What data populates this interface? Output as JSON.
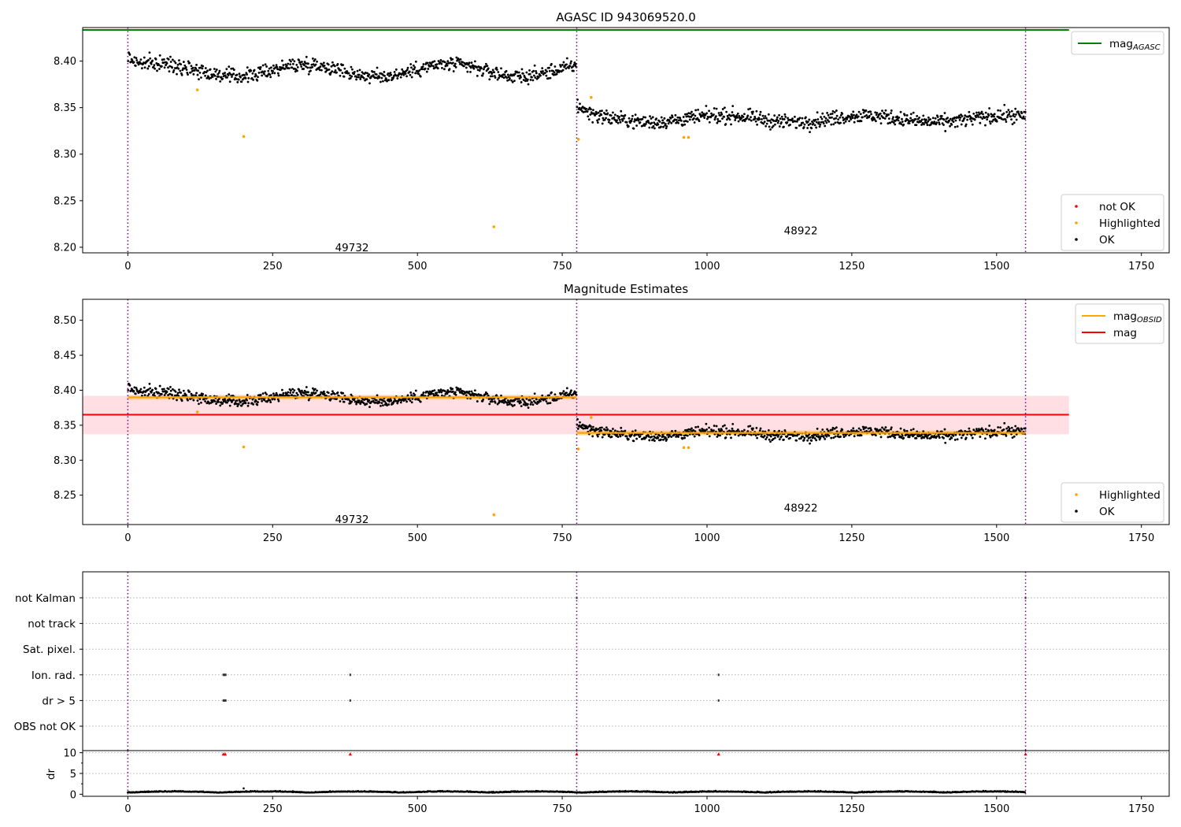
{
  "figure": {
    "title": "AGASC ID 943069520.0"
  },
  "chart_data": [
    {
      "type": "scatter",
      "title": "AGASC ID 943069520.0",
      "xlim": [
        -78,
        1798
      ],
      "ylim": [
        8.194,
        8.436
      ],
      "xticks": [
        0,
        250,
        500,
        750,
        1000,
        1250,
        1500,
        1750
      ],
      "yticks": [
        8.2,
        8.25,
        8.3,
        8.35,
        8.4
      ],
      "ytick_labels": [
        "8.20",
        "8.25",
        "8.30",
        "8.35",
        "8.40"
      ],
      "obs_boundaries": [
        0,
        775,
        1550
      ],
      "obs_labels": [
        {
          "text": "49732",
          "x": 387,
          "y": 8.2
        },
        {
          "text": "48922",
          "x": 1162,
          "y": 8.218
        }
      ],
      "series": [
        {
          "name": "mag_AGASC",
          "type": "hline",
          "y": 8.4335,
          "x": [
            -78,
            1625
          ],
          "color": "#008000"
        },
        {
          "name": "OK",
          "color": "#000000",
          "segments": [
            {
              "x": [
                0,
                775
              ],
              "y_start": 8.405,
              "base": 8.39,
              "amp": 0.0065,
              "jitter": 0.0055
            },
            {
              "x": [
                775,
                1550
              ],
              "y_start": 8.35,
              "base": 8.338,
              "amp": 0.0035,
              "jitter": 0.0055
            }
          ]
        },
        {
          "name": "Highlighted",
          "color": "#ffa500",
          "points": [
            [
              120,
              8.369
            ],
            [
              200,
              8.319
            ],
            [
              632,
              8.222
            ],
            [
              778,
              8.316
            ],
            [
              800,
              8.361
            ],
            [
              960,
              8.318
            ],
            [
              968,
              8.318
            ]
          ]
        },
        {
          "name": "not OK",
          "color": "#ff0000",
          "points": []
        }
      ],
      "legends": [
        {
          "position": "upper-right",
          "entries": [
            {
              "label": "mag",
              "sub": "AGASC",
              "kind": "line",
              "color": "#008000"
            }
          ]
        },
        {
          "position": "lower-right",
          "entries": [
            {
              "label": "not OK",
              "kind": "marker",
              "color": "#ff0000"
            },
            {
              "label": "Highlighted",
              "kind": "marker",
              "color": "#ffa500"
            },
            {
              "label": "OK",
              "kind": "marker",
              "color": "#000000"
            }
          ]
        }
      ]
    },
    {
      "type": "scatter",
      "title": "Magnitude Estimates",
      "xlim": [
        -78,
        1798
      ],
      "ylim": [
        8.208,
        8.53
      ],
      "xticks": [
        0,
        250,
        500,
        750,
        1000,
        1250,
        1500,
        1750
      ],
      "yticks": [
        8.25,
        8.3,
        8.35,
        8.4,
        8.45,
        8.5
      ],
      "ytick_labels": [
        "8.25",
        "8.30",
        "8.35",
        "8.40",
        "8.45",
        "8.50"
      ],
      "obs_boundaries": [
        0,
        775,
        1550
      ],
      "obs_labels": [
        {
          "text": "49732",
          "x": 387,
          "y": 8.216
        },
        {
          "text": "48922",
          "x": 1162,
          "y": 8.232
        }
      ],
      "band": {
        "x": [
          -78,
          1625
        ],
        "y": [
          8.337,
          8.392
        ],
        "color": "#ffb0b8"
      },
      "series": [
        {
          "name": "mag",
          "type": "hline",
          "y": 8.365,
          "x": [
            -78,
            1625
          ],
          "color": "#ff0000"
        },
        {
          "name": "mag_OBSID",
          "type": "segments",
          "color": "#ffa500",
          "segments": [
            {
              "x": [
                0,
                775
              ],
              "y": 8.39
            },
            {
              "x": [
                775,
                1550
              ],
              "y": 8.339
            }
          ]
        },
        {
          "name": "OK",
          "color": "#000000",
          "segments": [
            {
              "x": [
                0,
                775
              ],
              "y_start": 8.405,
              "base": 8.39,
              "amp": 0.0065,
              "jitter": 0.0055
            },
            {
              "x": [
                775,
                1550
              ],
              "y_start": 8.35,
              "base": 8.338,
              "amp": 0.0035,
              "jitter": 0.0055
            }
          ]
        },
        {
          "name": "Highlighted",
          "color": "#ffa500",
          "points": [
            [
              120,
              8.369
            ],
            [
              200,
              8.319
            ],
            [
              632,
              8.222
            ],
            [
              778,
              8.316
            ],
            [
              800,
              8.361
            ],
            [
              960,
              8.318
            ],
            [
              968,
              8.318
            ]
          ]
        }
      ],
      "legends": [
        {
          "position": "upper-right",
          "entries": [
            {
              "label": "mag",
              "sub": "OBSID",
              "kind": "line",
              "color": "#ffa500"
            },
            {
              "label": "mag",
              "kind": "line",
              "color": "#ff0000"
            }
          ]
        },
        {
          "position": "lower-right",
          "entries": [
            {
              "label": "Highlighted",
              "kind": "marker",
              "color": "#ffa500"
            },
            {
              "label": "OK",
              "kind": "marker",
              "color": "#000000"
            }
          ]
        }
      ]
    },
    {
      "type": "scatter",
      "title": "",
      "xlim": [
        -78,
        1798
      ],
      "categories": [
        "not Kalman",
        "not track",
        "Sat. pixel.",
        "Ion. rad.",
        "dr > 5",
        "OBS not OK"
      ],
      "grid": "horizontal-dotted",
      "obs_boundaries": [
        0,
        775,
        1550
      ],
      "flag_points": [
        {
          "category": "not Kalman",
          "x": [
            775,
            1550
          ]
        },
        {
          "category": "Ion. rad.",
          "x": [
            165,
            167,
            169,
            384,
            1020
          ]
        },
        {
          "category": "dr > 5",
          "x": [
            165,
            167,
            169,
            384,
            1020
          ]
        }
      ]
    },
    {
      "type": "scatter",
      "title": "",
      "ylabel": "dr",
      "xlim": [
        -78,
        1798
      ],
      "ylim": [
        -0.5,
        10.5
      ],
      "xticks": [
        0,
        250,
        500,
        750,
        1000,
        1250,
        1500,
        1750
      ],
      "yticks": [
        0,
        5,
        10
      ],
      "ytick_labels": [
        "0",
        "5",
        "10"
      ],
      "obs_boundaries": [
        0,
        775,
        1550
      ],
      "series": [
        {
          "name": "dr",
          "color": "#000000",
          "x": [
            0,
            1550
          ],
          "base": 0.35,
          "amp": 0.25
        },
        {
          "name": "dr clipped",
          "color": "#ff0000",
          "marker": "triangle",
          "points": [
            [
              165,
              9.7
            ],
            [
              168,
              9.7
            ],
            [
              384,
              9.7
            ],
            [
              775,
              9.7
            ],
            [
              1020,
              9.7
            ],
            [
              1550,
              9.7
            ]
          ]
        }
      ]
    }
  ]
}
